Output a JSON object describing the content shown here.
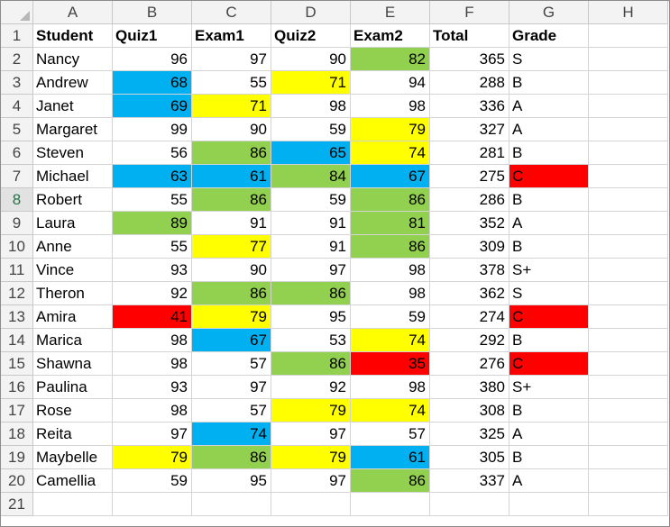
{
  "columns": [
    "A",
    "B",
    "C",
    "D",
    "E",
    "F",
    "G",
    "H"
  ],
  "header_row": {
    "row_num": "1",
    "cells": [
      "Student",
      "Quiz1",
      "Exam1",
      "Quiz2",
      "Exam2",
      "Total",
      "Grade"
    ]
  },
  "active_row": 8,
  "empty_row": "21",
  "colors": {
    "blue": "#00b0f0",
    "green": "#92d050",
    "yellow": "#ffff00",
    "red": "#ff0000"
  },
  "rows": [
    {
      "n": "2",
      "name": "Nancy",
      "vals": [
        "96",
        "97",
        "90",
        "82"
      ],
      "total": "365",
      "grade": "S",
      "fill": [
        "",
        "",
        "",
        "green"
      ],
      "grade_fill": ""
    },
    {
      "n": "3",
      "name": "Andrew",
      "vals": [
        "68",
        "55",
        "71",
        "94"
      ],
      "total": "288",
      "grade": "B",
      "fill": [
        "blue",
        "",
        "yellow",
        ""
      ],
      "grade_fill": ""
    },
    {
      "n": "4",
      "name": "Janet",
      "vals": [
        "69",
        "71",
        "98",
        "98"
      ],
      "total": "336",
      "grade": "A",
      "fill": [
        "blue",
        "yellow",
        "",
        ""
      ],
      "grade_fill": ""
    },
    {
      "n": "5",
      "name": "Margaret",
      "vals": [
        "99",
        "90",
        "59",
        "79"
      ],
      "total": "327",
      "grade": "A",
      "fill": [
        "",
        "",
        "",
        "yellow"
      ],
      "grade_fill": ""
    },
    {
      "n": "6",
      "name": "Steven",
      "vals": [
        "56",
        "86",
        "65",
        "74"
      ],
      "total": "281",
      "grade": "B",
      "fill": [
        "",
        "green",
        "blue",
        "yellow"
      ],
      "grade_fill": ""
    },
    {
      "n": "7",
      "name": "Michael",
      "vals": [
        "63",
        "61",
        "84",
        "67"
      ],
      "total": "275",
      "grade": "C",
      "fill": [
        "blue",
        "blue",
        "green",
        "blue"
      ],
      "grade_fill": "red"
    },
    {
      "n": "8",
      "name": "Robert",
      "vals": [
        "55",
        "86",
        "59",
        "86"
      ],
      "total": "286",
      "grade": "B",
      "fill": [
        "",
        "green",
        "",
        "green"
      ],
      "grade_fill": ""
    },
    {
      "n": "9",
      "name": "Laura",
      "vals": [
        "89",
        "91",
        "91",
        "81"
      ],
      "total": "352",
      "grade": "A",
      "fill": [
        "green",
        "",
        "",
        "green"
      ],
      "grade_fill": ""
    },
    {
      "n": "10",
      "name": "Anne",
      "vals": [
        "55",
        "77",
        "91",
        "86"
      ],
      "total": "309",
      "grade": "B",
      "fill": [
        "",
        "yellow",
        "",
        "green"
      ],
      "grade_fill": ""
    },
    {
      "n": "11",
      "name": "Vince",
      "vals": [
        "93",
        "90",
        "97",
        "98"
      ],
      "total": "378",
      "grade": "S+",
      "fill": [
        "",
        "",
        "",
        ""
      ],
      "grade_fill": ""
    },
    {
      "n": "12",
      "name": "Theron",
      "vals": [
        "92",
        "86",
        "86",
        "98"
      ],
      "total": "362",
      "grade": "S",
      "fill": [
        "",
        "green",
        "green",
        ""
      ],
      "grade_fill": ""
    },
    {
      "n": "13",
      "name": "Amira",
      "vals": [
        "41",
        "79",
        "95",
        "59"
      ],
      "total": "274",
      "grade": "C",
      "fill": [
        "red",
        "yellow",
        "",
        ""
      ],
      "grade_fill": "red"
    },
    {
      "n": "14",
      "name": "Marica",
      "vals": [
        "98",
        "67",
        "53",
        "74"
      ],
      "total": "292",
      "grade": "B",
      "fill": [
        "",
        "blue",
        "",
        "yellow"
      ],
      "grade_fill": ""
    },
    {
      "n": "15",
      "name": "Shawna",
      "vals": [
        "98",
        "57",
        "86",
        "35"
      ],
      "total": "276",
      "grade": "C",
      "fill": [
        "",
        "",
        "green",
        "red"
      ],
      "grade_fill": "red"
    },
    {
      "n": "16",
      "name": "Paulina",
      "vals": [
        "93",
        "97",
        "92",
        "98"
      ],
      "total": "380",
      "grade": "S+",
      "fill": [
        "",
        "",
        "",
        ""
      ],
      "grade_fill": ""
    },
    {
      "n": "17",
      "name": "Rose",
      "vals": [
        "98",
        "57",
        "79",
        "74"
      ],
      "total": "308",
      "grade": "B",
      "fill": [
        "",
        "",
        "yellow",
        "yellow"
      ],
      "grade_fill": ""
    },
    {
      "n": "18",
      "name": "Reita",
      "vals": [
        "97",
        "74",
        "97",
        "57"
      ],
      "total": "325",
      "grade": "A",
      "fill": [
        "",
        "blue",
        "",
        ""
      ],
      "grade_fill": ""
    },
    {
      "n": "19",
      "name": "Maybelle",
      "vals": [
        "79",
        "86",
        "79",
        "61"
      ],
      "total": "305",
      "grade": "B",
      "fill": [
        "yellow",
        "green",
        "yellow",
        "blue"
      ],
      "grade_fill": ""
    },
    {
      "n": "20",
      "name": "Camellia",
      "vals": [
        "59",
        "95",
        "97",
        "86"
      ],
      "total": "337",
      "grade": "A",
      "fill": [
        "",
        "",
        "",
        "green"
      ],
      "grade_fill": ""
    }
  ]
}
